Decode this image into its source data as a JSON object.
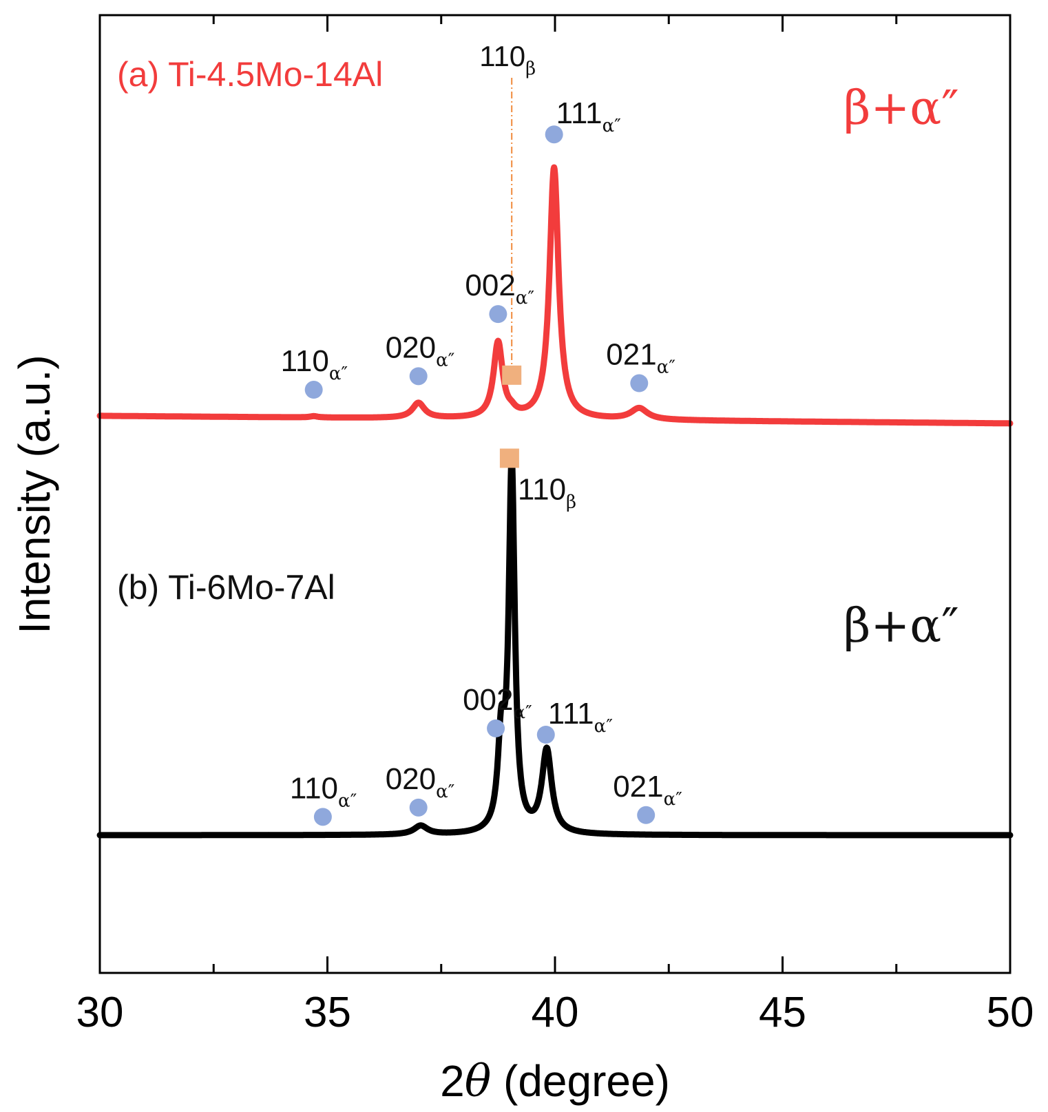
{
  "chart_data": {
    "type": "line",
    "title": "",
    "xlabel_prefix": "2",
    "xlabel_symbol": "θ",
    "xlabel_suffix": " (degree)",
    "ylabel": "Intensity (a.u.)",
    "xlim": [
      30,
      50
    ],
    "major_ticks": [
      30,
      35,
      40,
      45,
      50
    ],
    "minor_ticks": [
      32.5,
      37.5,
      42.5,
      47.5
    ],
    "tick_labels": [
      "30",
      "35",
      "40",
      "45",
      "50"
    ],
    "yticks_shown": false,
    "grid": false,
    "series": [
      {
        "name": "Ti-4.5Mo-14Al",
        "label": "(a) Ti-4.5Mo-14Al",
        "phase_label": "β+α″",
        "color": "#f23c3c",
        "baseline_start": 0.0,
        "baseline_end": -0.03,
        "peaks": [
          {
            "x": 34.7,
            "h": 0.005,
            "w": 0.1
          },
          {
            "x": 37.0,
            "h": 0.06,
            "w": 0.16
          },
          {
            "x": 38.75,
            "h": 0.3,
            "w": 0.12
          },
          {
            "x": 39.05,
            "h": 0.015,
            "w": 0.1
          },
          {
            "x": 39.98,
            "h": 1.0,
            "w": 0.12
          },
          {
            "x": 41.85,
            "h": 0.045,
            "w": 0.22
          }
        ]
      },
      {
        "name": "Ti-6Mo-7Al",
        "label": "(b) Ti-6Mo-7Al",
        "phase_label": "β+α″",
        "color": "#000000",
        "baseline_start": 0.0,
        "baseline_end": 0.0,
        "peaks": [
          {
            "x": 37.05,
            "h": 0.035,
            "w": 0.18
          },
          {
            "x": 38.82,
            "h": 0.35,
            "w": 0.09
          },
          {
            "x": 39.05,
            "h": 1.45,
            "w": 0.08
          },
          {
            "x": 39.82,
            "h": 0.33,
            "w": 0.13
          }
        ]
      }
    ],
    "annotations": [
      {
        "id": "a-110-alpha",
        "series": "Ti-4.5Mo-14Al",
        "phase": "alpha",
        "x": 34.7,
        "level": 0.104,
        "hkl": "110",
        "sub": "α″"
      },
      {
        "id": "a-020-alpha",
        "series": "Ti-4.5Mo-14Al",
        "phase": "alpha",
        "x": 37.0,
        "level": 0.158,
        "hkl": "020",
        "sub": "α″"
      },
      {
        "id": "a-002-alpha",
        "series": "Ti-4.5Mo-14Al",
        "phase": "alpha",
        "x": 38.75,
        "level": 0.405,
        "hkl": "002",
        "sub": "α″"
      },
      {
        "id": "a-110-beta",
        "series": "Ti-4.5Mo-14Al",
        "phase": "beta",
        "x": 39.05,
        "level": 0.162,
        "hkl": "110",
        "sub": "β"
      },
      {
        "id": "a-111-alpha",
        "series": "Ti-4.5Mo-14Al",
        "phase": "alpha",
        "x": 39.98,
        "level": 1.12,
        "hkl": "111",
        "sub": "α″"
      },
      {
        "id": "a-021-alpha",
        "series": "Ti-4.5Mo-14Al",
        "phase": "alpha",
        "x": 41.85,
        "level": 0.13,
        "hkl": "021",
        "sub": "α″"
      },
      {
        "id": "b-110-alpha",
        "series": "Ti-6Mo-7Al",
        "phase": "alpha",
        "x": 34.9,
        "level": 0.073,
        "hkl": "110",
        "sub": "α″"
      },
      {
        "id": "b-020-alpha",
        "series": "Ti-6Mo-7Al",
        "phase": "alpha",
        "x": 37.0,
        "level": 0.11,
        "hkl": "020",
        "sub": "α″"
      },
      {
        "id": "b-002-alpha",
        "series": "Ti-6Mo-7Al",
        "phase": "alpha",
        "x": 38.7,
        "level": 0.425,
        "hkl": "002",
        "sub": "α″"
      },
      {
        "id": "b-110-beta",
        "series": "Ti-6Mo-7Al",
        "phase": "beta",
        "x": 39.0,
        "level": 1.5,
        "hkl": "110",
        "sub": "β"
      },
      {
        "id": "b-111-alpha",
        "series": "Ti-6Mo-7Al",
        "phase": "alpha",
        "x": 39.8,
        "level": 0.4,
        "hkl": "111",
        "sub": "α″"
      },
      {
        "id": "b-021-alpha",
        "series": "Ti-6Mo-7Al",
        "phase": "alpha",
        "x": 42.0,
        "level": 0.08,
        "hkl": "021",
        "sub": "α″"
      }
    ],
    "reference_line": {
      "x": 39.05,
      "label_hkl": "110",
      "label_sub": "β",
      "color": "#f08a3c"
    },
    "marker_colors": {
      "alpha": "#8fa8dc",
      "beta": "#f0b07e"
    }
  }
}
